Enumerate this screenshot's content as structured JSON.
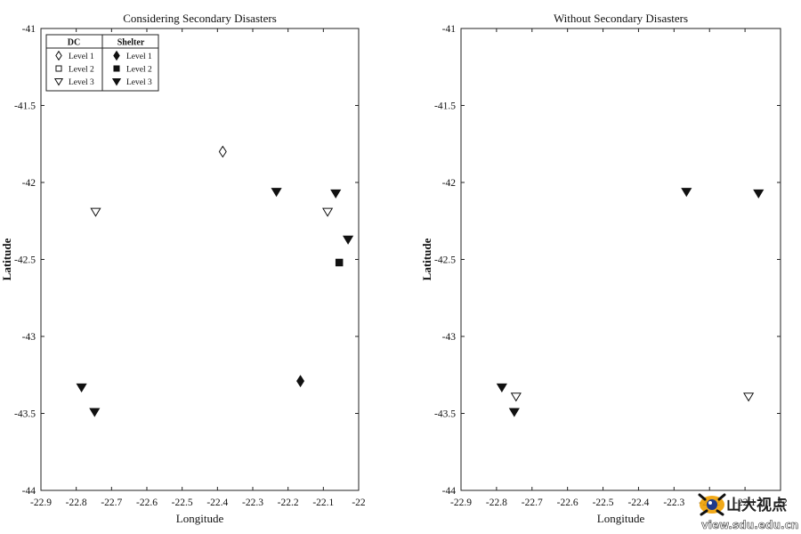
{
  "figure": {
    "x_axis_label": "Longitude",
    "y_axis_label": "Latitude",
    "x_ticks": [
      -22.9,
      -22.8,
      -22.7,
      -22.6,
      -22.5,
      -22.4,
      -22.3,
      -22.2,
      -22.1,
      -22
    ],
    "y_ticks": [
      -41,
      -41.5,
      -42,
      -42.5,
      -43,
      -43.5,
      -44
    ],
    "xlim": [
      -22.9,
      -22
    ],
    "ylim": [
      -44,
      -41
    ]
  },
  "legend": {
    "group_dc": "DC",
    "group_shelter": "Shelter",
    "dc_entries": [
      "Level 1",
      "Level 2",
      "Level 3"
    ],
    "shelter_entries": [
      "Level 1",
      "Level 2",
      "Level 3"
    ],
    "placement": "top-left"
  },
  "watermark": {
    "name_text": "山大视点",
    "url_text": "view.sdu.edu.cn"
  },
  "chart_data": [
    {
      "type": "scatter",
      "title": "Considering Secondary Disasters",
      "xlabel": "Longitude",
      "ylabel": "Latitude",
      "xlim": [
        -22.9,
        -22
      ],
      "ylim": [
        -44,
        -41
      ],
      "grid": false,
      "legend_position": "top-left",
      "points": [
        {
          "x": -22.385,
          "y": -41.8,
          "group": "DC",
          "level": 1,
          "marker": "diamond-open"
        },
        {
          "x": -22.745,
          "y": -42.19,
          "group": "DC",
          "level": 3,
          "marker": "triangle-open"
        },
        {
          "x": -22.088,
          "y": -42.19,
          "group": "DC",
          "level": 3,
          "marker": "triangle-open"
        },
        {
          "x": -22.165,
          "y": -43.29,
          "group": "Shelter",
          "level": 1,
          "marker": "diamond-filled"
        },
        {
          "x": -22.055,
          "y": -42.52,
          "group": "Shelter",
          "level": 2,
          "marker": "square-filled"
        },
        {
          "x": -22.233,
          "y": -42.06,
          "group": "Shelter",
          "level": 3,
          "marker": "triangle-filled"
        },
        {
          "x": -22.065,
          "y": -42.07,
          "group": "Shelter",
          "level": 3,
          "marker": "triangle-filled"
        },
        {
          "x": -22.03,
          "y": -42.37,
          "group": "Shelter",
          "level": 3,
          "marker": "triangle-filled"
        },
        {
          "x": -22.785,
          "y": -43.33,
          "group": "Shelter",
          "level": 3,
          "marker": "triangle-filled"
        },
        {
          "x": -22.748,
          "y": -43.49,
          "group": "Shelter",
          "level": 3,
          "marker": "triangle-filled"
        }
      ]
    },
    {
      "type": "scatter",
      "title": "Without Secondary Disasters",
      "xlabel": "Longitude",
      "ylabel": "Latitude",
      "xlim": [
        -22.9,
        -22
      ],
      "ylim": [
        -44,
        -41
      ],
      "grid": false,
      "points": [
        {
          "x": -22.745,
          "y": -43.39,
          "group": "DC",
          "level": 3,
          "marker": "triangle-open"
        },
        {
          "x": -22.09,
          "y": -43.39,
          "group": "DC",
          "level": 3,
          "marker": "triangle-open"
        },
        {
          "x": -22.785,
          "y": -43.33,
          "group": "Shelter",
          "level": 3,
          "marker": "triangle-filled"
        },
        {
          "x": -22.75,
          "y": -43.49,
          "group": "Shelter",
          "level": 3,
          "marker": "triangle-filled"
        },
        {
          "x": -22.265,
          "y": -42.06,
          "group": "Shelter",
          "level": 3,
          "marker": "triangle-filled"
        },
        {
          "x": -22.062,
          "y": -42.07,
          "group": "Shelter",
          "level": 3,
          "marker": "triangle-filled"
        }
      ]
    }
  ]
}
